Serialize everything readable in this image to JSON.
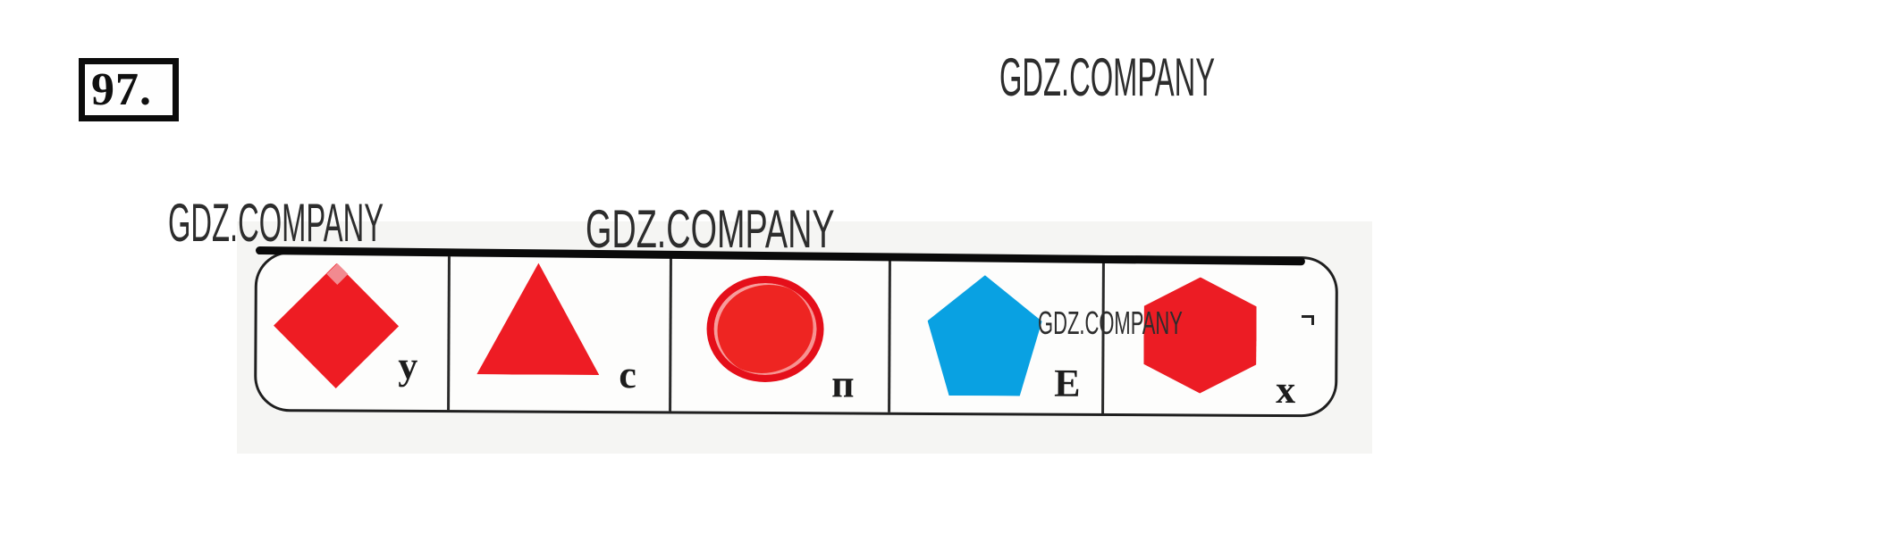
{
  "page": {
    "exercise_number": "97."
  },
  "watermarks": {
    "top": "GDZ.COMPANY",
    "left": "GDZ.COMPANY",
    "middle": "GDZ.COMPANY",
    "inner": "GDZ.COMPANY"
  },
  "colors": {
    "shape_red": "#ee1c23",
    "shape_blue": "#09a1e2",
    "circle_ring_red": "#e50f1a",
    "board_border": "#1f1f1f",
    "label_text": "#1d1d1d"
  },
  "board": {
    "cells": [
      {
        "shape": "diamond",
        "color": "#ee1c23",
        "label": "у"
      },
      {
        "shape": "triangle",
        "color": "#ee1c24",
        "label": "с"
      },
      {
        "shape": "circle",
        "color": "#ee2522",
        "ring": "#e50f1a",
        "label": "п"
      },
      {
        "shape": "pentagon",
        "color": "#09a1e2",
        "label": "Е"
      },
      {
        "shape": "hexagon",
        "color": "#ec1c24",
        "label": "х"
      }
    ]
  }
}
